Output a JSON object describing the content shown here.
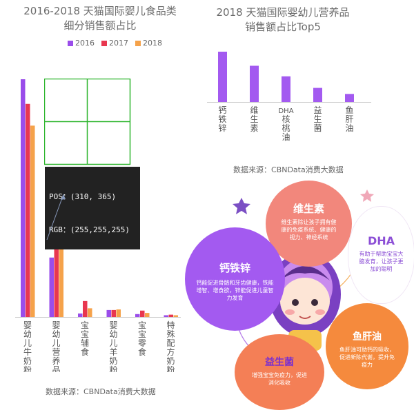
{
  "left_chart": {
    "title_line1": "2016-2018 天猫国际婴儿食品类",
    "title_line2": "细分销售额占比",
    "source": "数据来源：CBNData消费大数据"
  },
  "right_chart": {
    "title_line1": "2018 天猫国际婴幼儿营养品",
    "title_line2": "销售额占比Top5",
    "source": "数据来源：CBNData消费大数据"
  },
  "tooltip": {
    "pos": "POS：(310, 365)",
    "rgb": "RGB：(255,255,255)"
  },
  "balloons": {
    "vitamin": {
      "title": "维生素",
      "desc": "维生素除让孩子拥有健康的免疫系统、健康的视力、神经系统"
    },
    "dha": {
      "title": "DHA",
      "desc": "有助于帮助宝宝大脑发育，让孩子更加的聪明"
    },
    "calcium": {
      "title": "钙铁锌",
      "desc": "钙能促进骨骼和牙齿健康，铁能增智、增食欲，锌能促进儿童智力发育"
    },
    "probiotic": {
      "title": "益生菌",
      "desc": "增强宝宝免疫力，促进消化吸收"
    },
    "fishoil": {
      "title": "鱼肝油",
      "desc": "鱼肝油可助钙的吸收，促进新陈代谢，提升免疫力"
    }
  },
  "colors": {
    "s2016": "#9a4dea",
    "s2017": "#e8374f",
    "s2018": "#f5a24a",
    "purple": "#a35af0",
    "axis": "#cccccc",
    "grid": "#2db52d",
    "pink": "#f2877c",
    "orange": "#f58a3d",
    "coral": "#f47f56"
  },
  "chart_data": [
    {
      "type": "bar",
      "title": "2016-2018 天猫国际婴儿食品类细分销售额占比",
      "categories": [
        "婴幼儿牛奶粉",
        "婴幼儿营养品",
        "宝宝辅食",
        "婴幼儿羊奶粉",
        "宝宝零食",
        "特殊配方奶粉"
      ],
      "series": [
        {
          "name": "2016",
          "values": [
            82,
            20.5,
            1.2,
            2.4,
            1.0,
            0.6
          ]
        },
        {
          "name": "2017",
          "values": [
            73.5,
            28.5,
            5.5,
            2.4,
            2.2,
            0.8
          ]
        },
        {
          "name": "2018",
          "values": [
            66,
            34,
            3.0,
            2.6,
            1.4,
            0.6
          ]
        }
      ],
      "legend_position": "top"
    },
    {
      "type": "bar",
      "title": "2018 天猫国际婴幼儿营养品销售额占比Top5",
      "categories": [
        "钙铁锌",
        "维生素",
        "DHA核桃油",
        "益生菌",
        "鱼肝油"
      ],
      "series": [
        {
          "name": "2018",
          "values": [
            100,
            72,
            51,
            28,
            16
          ]
        }
      ]
    }
  ]
}
